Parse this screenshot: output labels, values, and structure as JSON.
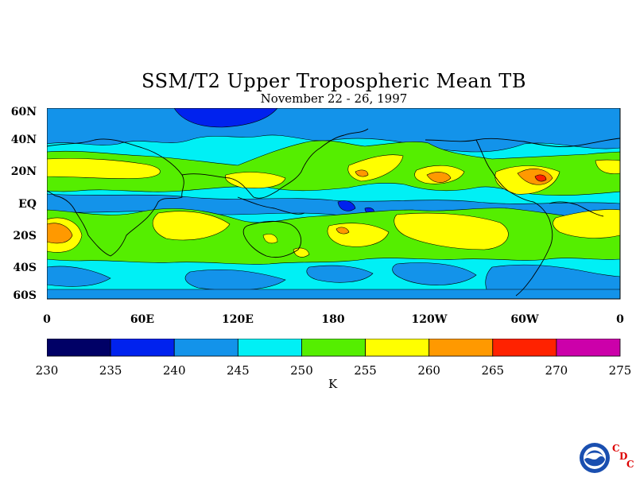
{
  "title": "SSM/T2 Upper Tropospheric Mean TB",
  "subtitle": "November 22 - 26, 1997",
  "lat_ticks": [
    "60N",
    "40N",
    "20N",
    "EQ",
    "20S",
    "40S",
    "60S"
  ],
  "lon_ticks": [
    "0",
    "60E",
    "120E",
    "180",
    "120W",
    "60W",
    "0"
  ],
  "colorbar": {
    "levels": [
      "230",
      "235",
      "240",
      "245",
      "250",
      "255",
      "260",
      "265",
      "270",
      "275"
    ],
    "colors": [
      "#000066",
      "#0022ee",
      "#1393ea",
      "#00f0f5",
      "#55ee00",
      "#ffff00",
      "#ff9900",
      "#ff2200",
      "#cc00aa"
    ],
    "unit": "K"
  },
  "logo": {
    "letters": [
      "C",
      "D",
      "C"
    ],
    "emblem": "noaa-logo"
  },
  "map_fields": {
    "background_band_color": "#00f0f5",
    "notes_colors": [
      "#1393ea",
      "#55ee00",
      "#ffff00",
      "#ff9900",
      "#ff2200",
      "#0022ee"
    ]
  }
}
